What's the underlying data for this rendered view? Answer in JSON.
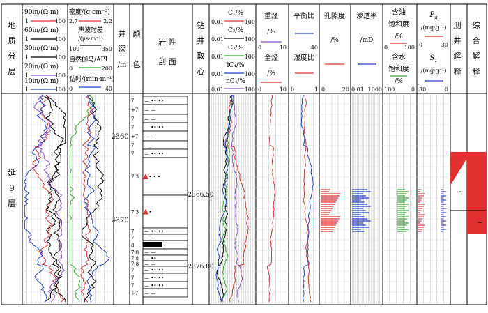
{
  "columns": {
    "layer": [
      "地",
      "质",
      "分",
      "层"
    ],
    "depth": [
      "井",
      "深",
      "/m"
    ],
    "color": [
      "颜",
      "色"
    ],
    "lithology": [
      "岩  性",
      "剖  面"
    ],
    "core": [
      "钻",
      "井",
      "取",
      "心"
    ],
    "interp": [
      "测",
      "井",
      "解",
      "释"
    ],
    "comp": [
      "综",
      "合",
      "解",
      "释"
    ]
  },
  "resistivity": {
    "items": [
      {
        "label": "90in/(Ω·m)",
        "min": "1",
        "max": "100",
        "color": "#e03030"
      },
      {
        "label": "60in/(Ω·m)",
        "min": "1",
        "max": "100",
        "color": "#000000"
      },
      {
        "label": "30in/(Ω·m)",
        "min": "1",
        "max": "100",
        "color": "#000000"
      },
      {
        "label": "20in/(Ω·m)",
        "min": "1",
        "max": "100",
        "color": "#8a4fcf"
      },
      {
        "label": "10in/(Ω·m)",
        "min": "1",
        "max": "100",
        "color": "#1e3fd0"
      }
    ]
  },
  "porosity_logs": {
    "density": {
      "label": "密度/(g·cm⁻³)",
      "min": "2.7",
      "max": "2.2",
      "color": "#e03030"
    },
    "sonic": {
      "label": "声波时差",
      "unit": "/(μs·m⁻¹)",
      "min": "100",
      "max": "350",
      "color": "#000000"
    },
    "gamma": {
      "label": "自然伽马/API",
      "min": "0",
      "max": "200",
      "color": "#2eaa2e"
    },
    "drill": {
      "label": "钻时/(min·m⁻¹)",
      "min": "0",
      "max": "40",
      "color": "#1e3fd0"
    }
  },
  "depth": {
    "ticks": [
      "2360",
      "2370"
    ]
  },
  "layer_name": [
    "延",
    "9",
    "层"
  ],
  "lithology_rows": [
    {
      "code": "7",
      "sym": "— ••  ••"
    },
    {
      "code": "+7",
      "sym": "— —"
    },
    {
      "code": "7",
      "sym": "— —"
    },
    {
      "code": "7",
      "sym": "— ••  ••"
    },
    {
      "code": "+7",
      "sym": "— —"
    },
    {
      "code": "7",
      "sym": "— —"
    },
    {
      "code": "7",
      "sym": "— ••  ••"
    },
    {
      "code": "7.3",
      "sym": "•  •  •  •"
    },
    {
      "code": "7.3",
      "sym": "•     •"
    },
    {
      "code": "7",
      "sym": "— ••  ••"
    },
    {
      "code": "7",
      "sym": "— —"
    },
    {
      "code": "8",
      "sym": ""
    },
    {
      "code": "7.8",
      "sym": "— —"
    },
    {
      "code": "7.8",
      "sym": "— ••"
    },
    {
      "code": "7.8",
      "sym": "— —"
    },
    {
      "code": "7",
      "sym": "— ••  ••"
    },
    {
      "code": "7",
      "sym": "— ••  ••"
    },
    {
      "code": "7",
      "sym": "— ••  ••"
    },
    {
      "code": "+7",
      "sym": "— —"
    }
  ],
  "core_depths": [
    "2366.50",
    "2376.00"
  ],
  "gas": {
    "items": [
      {
        "label": "C₁/%",
        "min": "0.01",
        "max": "100",
        "color": "#e03030"
      },
      {
        "label": "C₂/%",
        "min": "0.01",
        "max": "100",
        "color": "#000000"
      },
      {
        "label": "C₃/%",
        "min": "0.01",
        "max": "100",
        "color": "#2eaa2e"
      },
      {
        "label": "iC₄/%",
        "min": "0.01",
        "max": "100",
        "color": "#1e3fd0"
      },
      {
        "label": "nC₄/%",
        "min": "0.01",
        "max": "100",
        "color": "#8a4fcf"
      }
    ]
  },
  "heavy": {
    "h1": "重烃",
    "h1u": "/%",
    "h2": "全烃",
    "h2u": "/%",
    "min": "0",
    "max": "10"
  },
  "ratio": {
    "h1": "平衡比",
    "h1u": "—",
    "max1": "40",
    "h2": "湿度比",
    "min": "0",
    "max": "1"
  },
  "phi": {
    "label": "孔隙度",
    "unit": "/%",
    "min": "0",
    "max": "20"
  },
  "perm": {
    "label": "渗透率",
    "unit": "/mD",
    "min": "0.01",
    "max": "1000"
  },
  "sat": {
    "l1": "含油",
    "l2": "饱和度",
    "u1": "/%",
    "min": "0",
    "max": "100",
    "l3": "含水",
    "l4": "饱和度",
    "u2": "/%",
    "min2": "100",
    "max2": "0"
  },
  "pg": {
    "label1": "P",
    "sub1": "g",
    "unit1": "/(mg·g⁻¹)",
    "min1": "0",
    "max1": "30",
    "label2": "S",
    "sub2": "1",
    "unit2": "/(mg·g⁻¹)",
    "min2": "30",
    "max2": "0"
  },
  "colors": {
    "red": "#e03030",
    "blue": "#1e3fd0",
    "green": "#2eaa2e",
    "purple": "#8a4fcf",
    "grid": "#b8b8b8"
  }
}
